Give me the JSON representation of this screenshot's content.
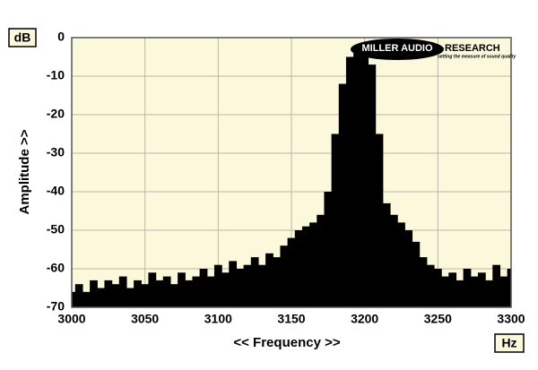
{
  "chart_data": {
    "type": "area",
    "y_unit": "dB",
    "x_unit": "Hz",
    "xlabel": "<< Frequency >>",
    "ylabel": "Amplitude >>",
    "x": [
      3000,
      3005,
      3010,
      3015,
      3020,
      3025,
      3030,
      3035,
      3040,
      3045,
      3050,
      3055,
      3060,
      3065,
      3070,
      3075,
      3080,
      3085,
      3090,
      3095,
      3100,
      3105,
      3110,
      3115,
      3120,
      3125,
      3130,
      3135,
      3140,
      3145,
      3150,
      3155,
      3160,
      3165,
      3170,
      3175,
      3180,
      3185,
      3190,
      3195,
      3200,
      3205,
      3210,
      3215,
      3220,
      3225,
      3230,
      3235,
      3240,
      3245,
      3250,
      3255,
      3260,
      3265,
      3270,
      3275,
      3280,
      3285,
      3290,
      3295,
      3300
    ],
    "values": [
      -66,
      -64,
      -66,
      -63,
      -65,
      -63,
      -64,
      -62,
      -65,
      -63,
      -64,
      -61,
      -63,
      -62,
      -64,
      -61,
      -63,
      -62,
      -60,
      -62,
      -59,
      -61,
      -58,
      -60,
      -59,
      -57,
      -59,
      -56,
      -57,
      -54,
      -52,
      -50,
      -49,
      -48,
      -46,
      -40,
      -25,
      -12,
      -5,
      -4,
      -3,
      -7,
      -25,
      -43,
      -46,
      -48,
      -50,
      -53,
      -57,
      -59,
      -60,
      -62,
      -61,
      -63,
      -60,
      -62,
      -61,
      -63,
      -59,
      -62,
      -60
    ],
    "color": "#000000",
    "background": "#fbf8dc",
    "xlim": [
      3000,
      3300
    ],
    "xticks": [
      3000,
      3050,
      3100,
      3150,
      3200,
      3250,
      3300
    ],
    "ylim": [
      -70,
      0
    ],
    "yticks": [
      0,
      -10,
      -20,
      -30,
      -40,
      -50,
      -60,
      -70
    ],
    "grid": true
  },
  "logo": {
    "name": "MILLER AUDIO",
    "name2": "RESEARCH",
    "tagline": "setting the measure of sound quality"
  }
}
